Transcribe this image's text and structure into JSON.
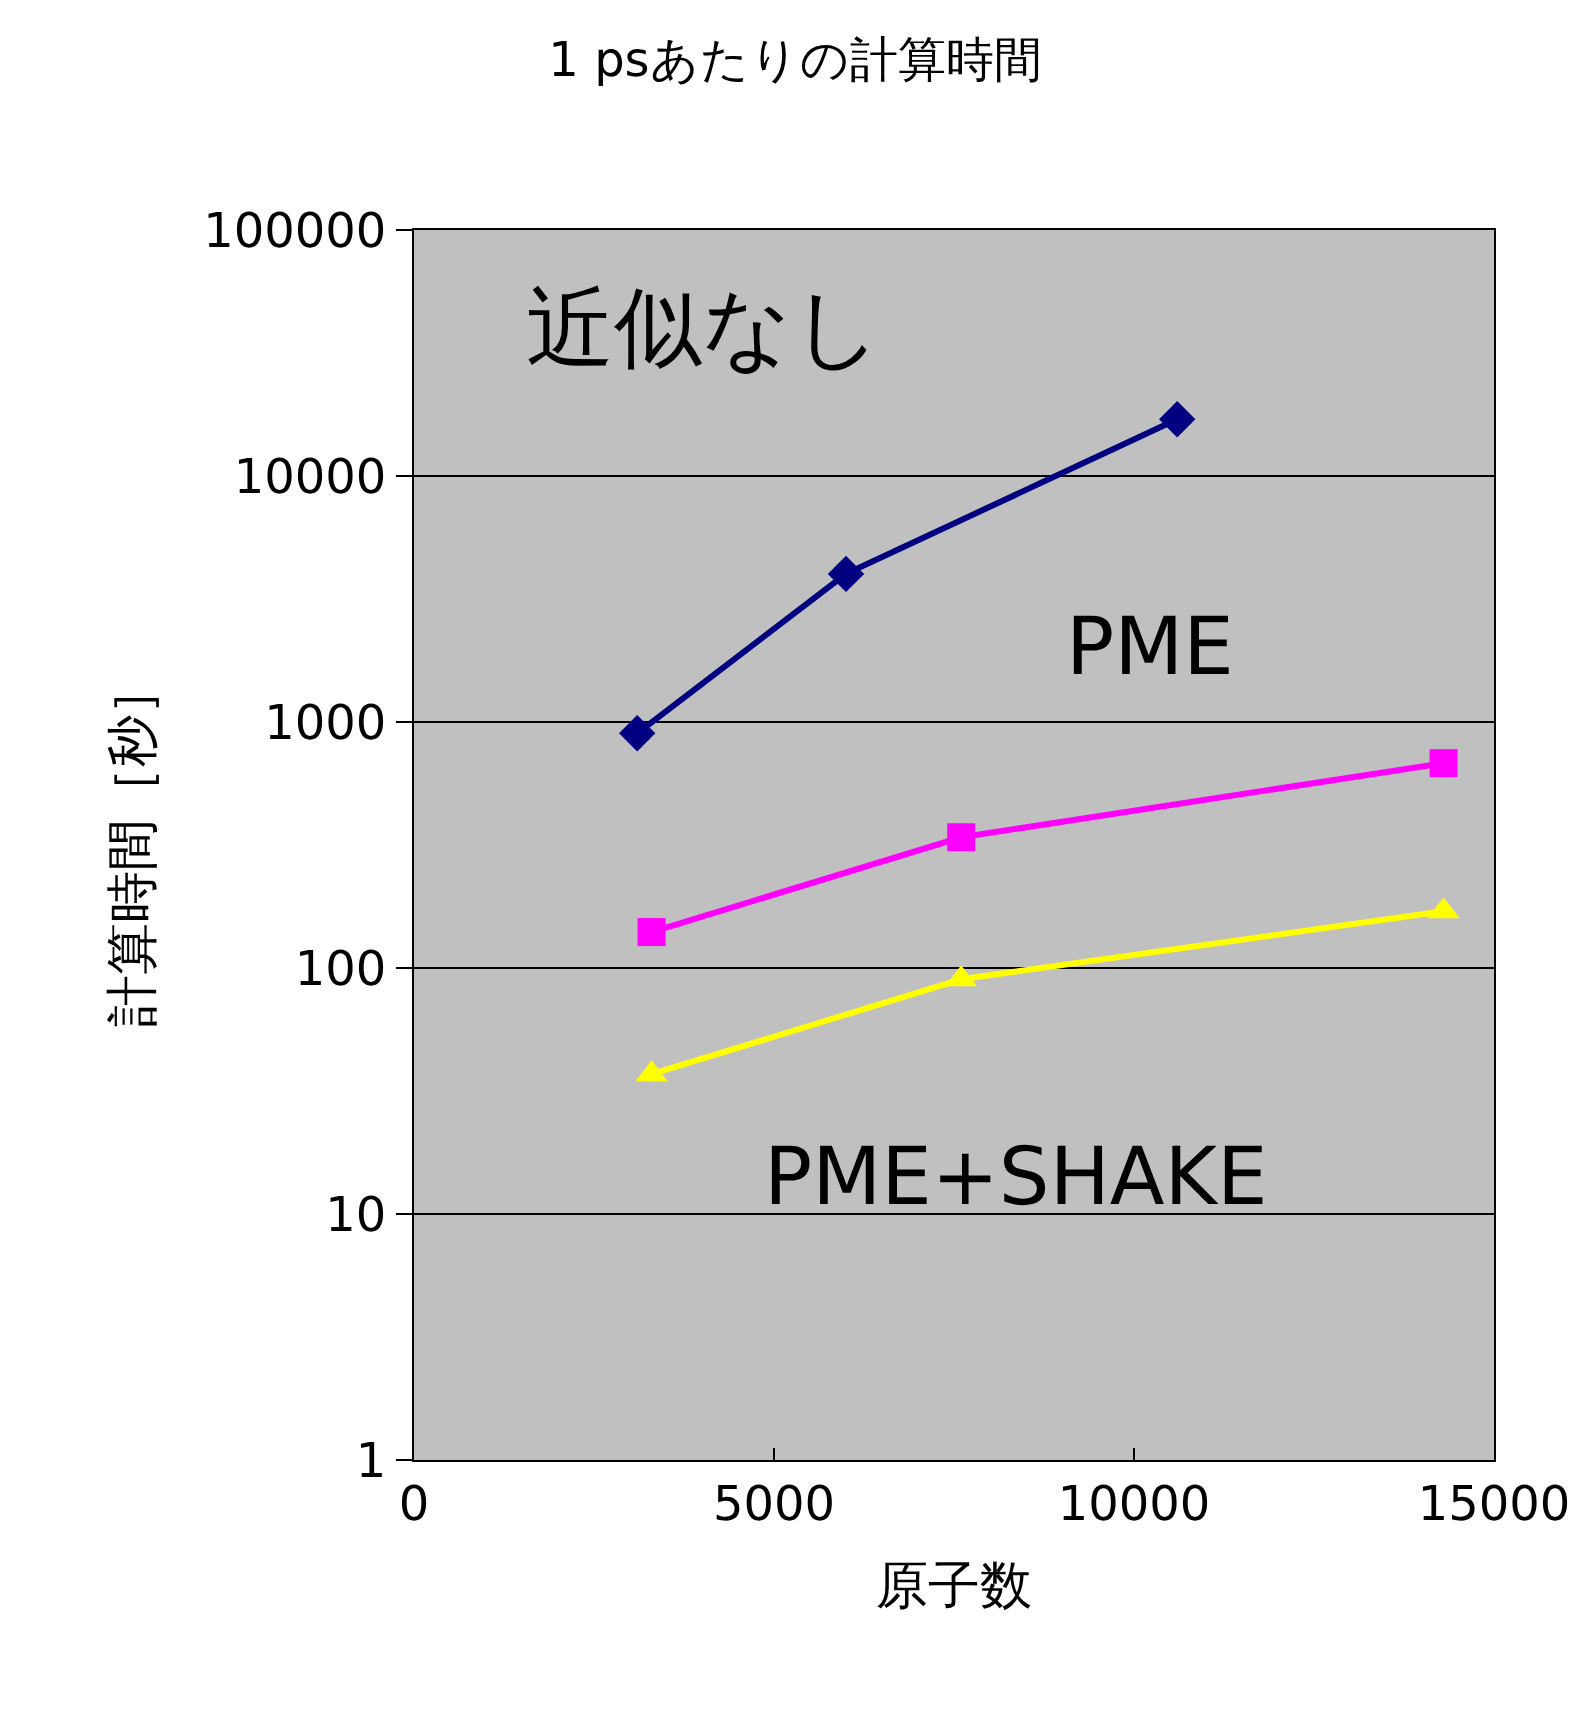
{
  "chart_data": {
    "type": "line",
    "title": "1 psあたりの計算時間",
    "xlabel": "原子数",
    "ylabel": "計算時間［秒］",
    "log": "y",
    "grid": "y",
    "legend": false,
    "xlim": [
      0,
      15000
    ],
    "xticks": [
      0,
      5000,
      10000,
      15000
    ],
    "ylim": [
      1,
      100000
    ],
    "yticks": [
      1,
      10,
      100,
      1000,
      10000,
      100000
    ],
    "series": [
      {
        "name": "近似なし",
        "color": "#000080",
        "marker": "diamond",
        "x": [
          3100,
          6000,
          10600
        ],
        "values": [
          900,
          4000,
          17000
        ]
      },
      {
        "name": "PME",
        "color": "#ff00ff",
        "marker": "square",
        "x": [
          3300,
          7600,
          14300
        ],
        "values": [
          140,
          340,
          680
        ]
      },
      {
        "name": "PME+SHAKE",
        "color": "#ffff00",
        "marker": "triangle",
        "x": [
          3300,
          7600,
          14300
        ],
        "values": [
          37,
          90,
          170
        ]
      }
    ]
  }
}
